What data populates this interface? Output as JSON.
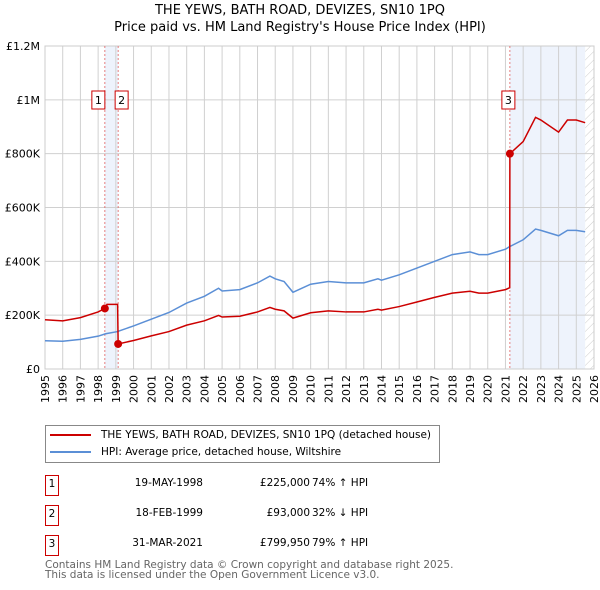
{
  "chart_data": {
    "type": "line",
    "title": "THE YEWS, BATH ROAD, DEVIZES, SN10 1PQ",
    "subtitle": "Price paid vs. HM Land Registry's House Price Index (HPI)",
    "xlim": [
      1995,
      2026
    ],
    "ylim": [
      0,
      1200000
    ],
    "y_ticks": [
      {
        "v": 0,
        "label": "£0"
      },
      {
        "v": 200000,
        "label": "£200K"
      },
      {
        "v": 400000,
        "label": "£400K"
      },
      {
        "v": 600000,
        "label": "£600K"
      },
      {
        "v": 800000,
        "label": "£800K"
      },
      {
        "v": 1000000,
        "label": "£1M"
      },
      {
        "v": 1200000,
        "label": "£1.2M"
      }
    ],
    "x_ticks": [
      "1995",
      "1996",
      "1997",
      "1998",
      "1999",
      "2000",
      "2001",
      "2002",
      "2003",
      "2004",
      "2005",
      "2006",
      "2007",
      "2008",
      "2009",
      "2010",
      "2011",
      "2012",
      "2013",
      "2014",
      "2015",
      "2016",
      "2017",
      "2018",
      "2019",
      "2020",
      "2021",
      "2022",
      "2023",
      "2024",
      "2025",
      "2026"
    ],
    "grid": true,
    "series": [
      {
        "name": "THE YEWS, BATH ROAD, DEVIZES, SN10 1PQ (detached house)",
        "color": "#cc0000",
        "x": [
          1995,
          1996,
          1997,
          1998,
          1998.38,
          1998.5,
          1999.1,
          1999.13,
          2000,
          2001,
          2002,
          2003,
          2004,
          2004.8,
          2005,
          2006,
          2007,
          2007.7,
          2008,
          2008.5,
          2009,
          2010,
          2011,
          2012,
          2013,
          2013.8,
          2014,
          2015,
          2016,
          2017,
          2018,
          2019,
          2019.5,
          2020,
          2021,
          2021.24,
          2021.25,
          2022,
          2022.7,
          2023,
          2024,
          2024.5,
          2025,
          2025.5
        ],
        "y": [
          183000,
          179000,
          191000,
          212000,
          225000,
          240000,
          240000,
          93000,
          106000,
          123000,
          139000,
          163000,
          179000,
          199000,
          193000,
          196000,
          212000,
          229000,
          222000,
          216000,
          189000,
          209000,
          216000,
          212000,
          212000,
          222000,
          219000,
          232000,
          249000,
          266000,
          282000,
          289000,
          282000,
          282000,
          295000,
          302000,
          799950,
          845000,
          935000,
          925000,
          880000,
          925000,
          925000,
          915000
        ]
      },
      {
        "name": "HPI: Average price, detached house, Wiltshire",
        "color": "#5b8fd6",
        "x": [
          1995,
          1996,
          1997,
          1998,
          1998.38,
          1998.5,
          1999.1,
          1999.13,
          2000,
          2001,
          2002,
          2003,
          2004,
          2004.8,
          2005,
          2006,
          2007,
          2007.7,
          2008,
          2008.5,
          2009,
          2010,
          2011,
          2012,
          2013,
          2013.8,
          2014,
          2015,
          2016,
          2017,
          2018,
          2019,
          2019.5,
          2020,
          2021,
          2021.24,
          2021.25,
          2022,
          2022.7,
          2023,
          2024,
          2024.5,
          2025,
          2025.5
        ],
        "y": [
          105000,
          103000,
          110000,
          122000,
          130000,
          132000,
          139000,
          140000,
          160000,
          185000,
          210000,
          245000,
          270000,
          300000,
          290000,
          295000,
          320000,
          345000,
          335000,
          325000,
          285000,
          315000,
          325000,
          320000,
          320000,
          335000,
          330000,
          350000,
          375000,
          400000,
          425000,
          435000,
          425000,
          425000,
          445000,
          455000,
          455000,
          480000,
          520000,
          515000,
          495000,
          515000,
          515000,
          510000
        ]
      }
    ],
    "sales": [
      {
        "n": "1",
        "x": 1998.38,
        "price": 225000,
        "date": "19-MAY-1998",
        "price_label": "£225,000",
        "hpi": "74% ↑ HPI"
      },
      {
        "n": "2",
        "x": 1999.13,
        "price": 93000,
        "date": "18-FEB-1999",
        "price_label": "£93,000",
        "hpi": "32% ↓ HPI"
      },
      {
        "n": "3",
        "x": 2021.25,
        "price": 799950,
        "date": "31-MAR-2021",
        "price_label": "£799,950",
        "hpi": "79% ↑ HPI"
      }
    ],
    "shaded_ranges": [
      [
        1998.38,
        1999.13
      ],
      [
        2021.25,
        2025.5
      ]
    ],
    "hatched_from": 2025.5,
    "legend_placement": "below"
  },
  "footer": {
    "line1": "Contains HM Land Registry data © Crown copyright and database right 2025.",
    "line2": "This data is licensed under the Open Government Licence v3.0."
  }
}
